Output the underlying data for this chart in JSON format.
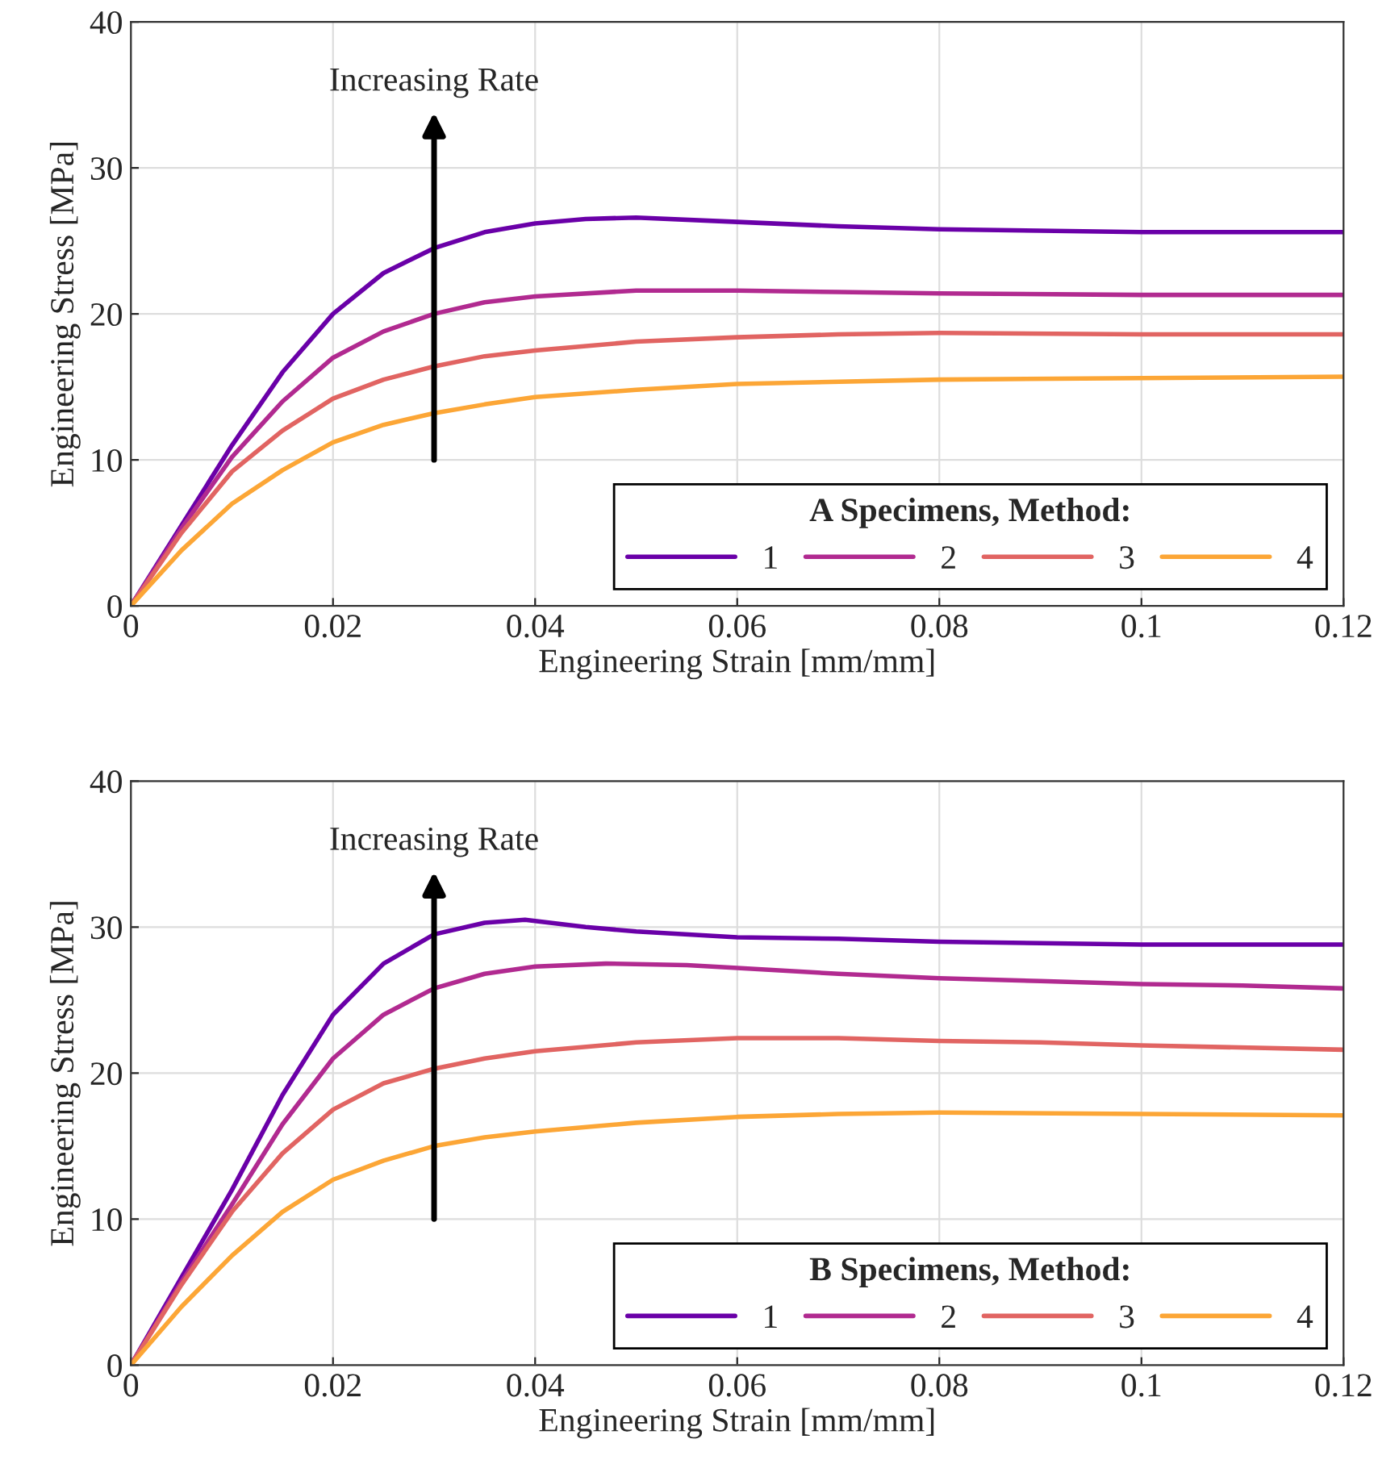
{
  "chart_data": [
    {
      "type": "line",
      "xlabel": "Engineering Strain [mm/mm]",
      "ylabel": "Engineering Stress [MPa]",
      "legend_title": "A Specimens, Method:",
      "legend": "bottom right",
      "grid": true,
      "line_style": "solid",
      "marker": "none",
      "xlim": [
        0,
        0.12
      ],
      "xticks": [
        0,
        0.02,
        0.04,
        0.06,
        0.08,
        0.1,
        0.12
      ],
      "ylim": [
        0,
        40
      ],
      "yticks": [
        0,
        10,
        20,
        30,
        40
      ],
      "annotations": [
        "Increasing Rate"
      ],
      "series": [
        {
          "name": "1",
          "color": "#6a00a8",
          "x": [
            0,
            0.005,
            0.01,
            0.015,
            0.02,
            0.025,
            0.03,
            0.035,
            0.04,
            0.045,
            0.05,
            0.06,
            0.07,
            0.08,
            0.09,
            0.1,
            0.11,
            0.12
          ],
          "values": [
            0,
            5.5,
            11,
            16,
            20,
            22.8,
            24.5,
            25.6,
            26.2,
            26.5,
            26.6,
            26.3,
            26.0,
            25.8,
            25.7,
            25.6,
            25.6,
            25.6
          ]
        },
        {
          "name": "2",
          "color": "#b12a90",
          "x": [
            0,
            0.005,
            0.01,
            0.015,
            0.02,
            0.025,
            0.03,
            0.035,
            0.04,
            0.05,
            0.06,
            0.07,
            0.08,
            0.1,
            0.12
          ],
          "values": [
            0,
            5.3,
            10.2,
            14,
            17,
            18.8,
            20,
            20.8,
            21.2,
            21.6,
            21.6,
            21.5,
            21.4,
            21.3,
            21.3
          ]
        },
        {
          "name": "3",
          "color": "#e16462",
          "x": [
            0,
            0.005,
            0.01,
            0.015,
            0.02,
            0.025,
            0.03,
            0.035,
            0.04,
            0.05,
            0.06,
            0.07,
            0.08,
            0.1,
            0.12
          ],
          "values": [
            0,
            5,
            9.2,
            12,
            14.2,
            15.5,
            16.4,
            17.1,
            17.5,
            18.1,
            18.4,
            18.6,
            18.7,
            18.6,
            18.6
          ]
        },
        {
          "name": "4",
          "color": "#fca636",
          "x": [
            0,
            0.005,
            0.01,
            0.015,
            0.02,
            0.025,
            0.03,
            0.035,
            0.04,
            0.05,
            0.06,
            0.08,
            0.1,
            0.12
          ],
          "values": [
            0,
            3.8,
            7,
            9.3,
            11.2,
            12.4,
            13.2,
            13.8,
            14.3,
            14.8,
            15.2,
            15.5,
            15.6,
            15.7
          ]
        }
      ]
    },
    {
      "type": "line",
      "xlabel": "Engineering Strain [mm/mm]",
      "ylabel": "Engineering Stress [MPa]",
      "legend_title": "B Specimens, Method:",
      "legend": "bottom right",
      "grid": true,
      "line_style": "solid",
      "marker": "none",
      "xlim": [
        0,
        0.12
      ],
      "xticks": [
        0,
        0.02,
        0.04,
        0.06,
        0.08,
        0.1,
        0.12
      ],
      "ylim": [
        0,
        40
      ],
      "yticks": [
        0,
        10,
        20,
        30,
        40
      ],
      "annotations": [
        "Increasing Rate"
      ],
      "series": [
        {
          "name": "1",
          "color": "#6a00a8",
          "x": [
            0,
            0.005,
            0.01,
            0.015,
            0.02,
            0.025,
            0.03,
            0.035,
            0.039,
            0.045,
            0.05,
            0.06,
            0.07,
            0.08,
            0.09,
            0.1,
            0.12
          ],
          "values": [
            0,
            6,
            12,
            18.5,
            24,
            27.5,
            29.5,
            30.3,
            30.5,
            30,
            29.7,
            29.3,
            29.2,
            29,
            28.9,
            28.8,
            28.8
          ]
        },
        {
          "name": "2",
          "color": "#b12a90",
          "x": [
            0,
            0.005,
            0.01,
            0.015,
            0.02,
            0.025,
            0.03,
            0.035,
            0.04,
            0.047,
            0.055,
            0.06,
            0.07,
            0.08,
            0.09,
            0.1,
            0.11,
            0.12
          ],
          "values": [
            0,
            5.7,
            11,
            16.5,
            21,
            24,
            25.8,
            26.8,
            27.3,
            27.5,
            27.4,
            27.2,
            26.8,
            26.5,
            26.3,
            26.1,
            26,
            25.8
          ]
        },
        {
          "name": "3",
          "color": "#e16462",
          "x": [
            0,
            0.005,
            0.01,
            0.015,
            0.02,
            0.025,
            0.03,
            0.035,
            0.04,
            0.05,
            0.06,
            0.07,
            0.08,
            0.09,
            0.1,
            0.12
          ],
          "values": [
            0,
            5.5,
            10.5,
            14.5,
            17.5,
            19.3,
            20.3,
            21,
            21.5,
            22.1,
            22.4,
            22.4,
            22.2,
            22.1,
            21.9,
            21.6
          ]
        },
        {
          "name": "4",
          "color": "#fca636",
          "x": [
            0,
            0.005,
            0.01,
            0.015,
            0.02,
            0.025,
            0.03,
            0.035,
            0.04,
            0.05,
            0.06,
            0.07,
            0.08,
            0.1,
            0.12
          ],
          "values": [
            0,
            4,
            7.5,
            10.5,
            12.7,
            14,
            15,
            15.6,
            16,
            16.6,
            17,
            17.2,
            17.3,
            17.2,
            17.1
          ]
        }
      ]
    }
  ]
}
